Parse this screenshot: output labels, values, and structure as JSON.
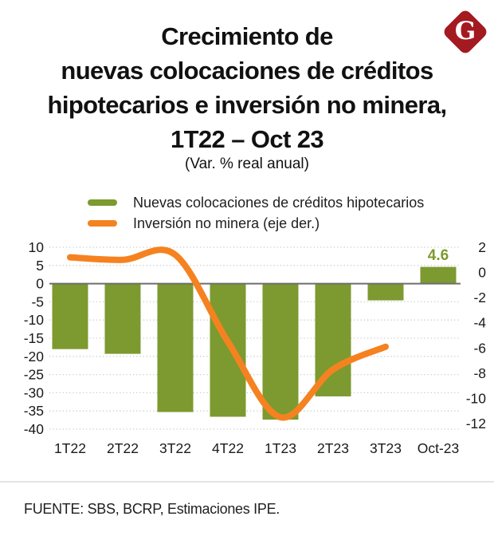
{
  "logo": {
    "letter": "G",
    "color": "#A31A21"
  },
  "title": {
    "lines": [
      "Crecimiento de",
      "nuevas colocaciones de créditos",
      "hipotecarios e inversión no minera,",
      "1T22 – Oct 23"
    ],
    "subtitle": "(Var. % real anual)"
  },
  "footer": {
    "source": "FUENTE: SBS, BCRP, Estimaciones IPE."
  },
  "chart_data": {
    "type": "bar+line combo, dual axis",
    "categories": [
      "1T22",
      "2T22",
      "3T22",
      "4T22",
      "1T23",
      "2T23",
      "3T23",
      "Oct-23"
    ],
    "series": [
      {
        "name": "Nuevas colocaciones de créditos hipotecarios",
        "type": "bar",
        "axis": "left",
        "color": "#7C9A2F",
        "values": [
          -18,
          -19.3,
          -35.3,
          -36.6,
          -37.4,
          -31,
          -4.6,
          4.6
        ]
      },
      {
        "name": "Inversión no minera (eje der.)",
        "type": "line",
        "axis": "right",
        "color": "#F58220",
        "values": [
          1.2,
          1.0,
          1.4,
          -5.5,
          -11.5,
          -7.7,
          -5.9,
          null
        ]
      }
    ],
    "left_axis": {
      "ticks": [
        10,
        5,
        0,
        -5,
        -10,
        -15,
        -20,
        -25,
        -30,
        -35,
        -40
      ],
      "range": [
        10,
        -40
      ]
    },
    "right_axis": {
      "ticks": [
        2,
        0,
        -2,
        -4,
        -6,
        -8,
        -10,
        -12
      ],
      "range": [
        2,
        -12
      ]
    },
    "annotations": [
      {
        "text": "4.6",
        "category": "Oct-23",
        "color": "#7C9A2F"
      }
    ],
    "grid": "dotted horizontal gridlines, solid zero line",
    "grid_color": "#C9C9C9",
    "zero_line_color": "#6E6E6E",
    "tick_color": "#1A1A1A"
  }
}
